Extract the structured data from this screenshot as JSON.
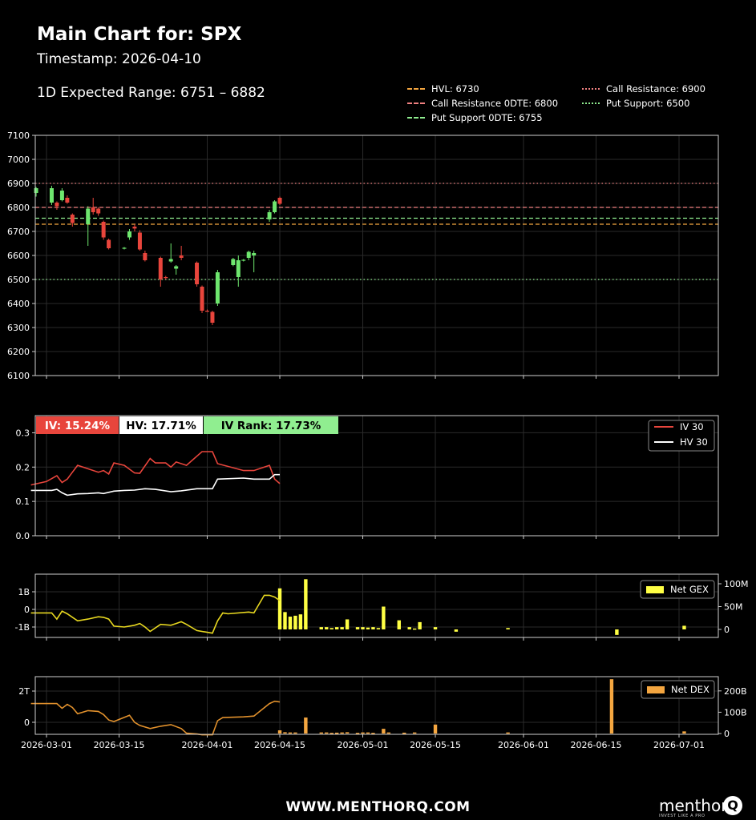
{
  "header": {
    "title": "Main Chart for: SPX",
    "timestamp": "Timestamp: 2026-04-10",
    "expected_range": "1D Expected Range: 6751 – 6882"
  },
  "footer": {
    "url": "WWW.MENTHORQ.COM",
    "brand_name": "menthor",
    "brand_mark": "Q",
    "brand_tagline": "INVEST LIKE A PRO"
  },
  "level_legend": [
    {
      "label": "HVL: 6730",
      "color": "#f4a640",
      "style": "dashed"
    },
    {
      "label": "Call Resistance 0DTE: 6800",
      "color": "#f08080",
      "style": "dashed"
    },
    {
      "label": "Put Support 0DTE: 6755",
      "color": "#90ee90",
      "style": "dashed"
    },
    {
      "label": "Call Resistance: 6900",
      "color": "#f08080",
      "style": "dotted"
    },
    {
      "label": "Put Support: 6500",
      "color": "#90ee90",
      "style": "dotted"
    }
  ],
  "x_axis": {
    "ticks": [
      "2026-03-01",
      "2026-03-15",
      "2026-04-01",
      "2026-04-15",
      "2026-05-01",
      "2026-05-15",
      "2026-06-01",
      "2026-06-15",
      "2026-07-01"
    ]
  },
  "chart_data": [
    {
      "type": "candlestick",
      "ylim": [
        6100,
        7100
      ],
      "yticks": [
        "6100",
        "6200",
        "6300",
        "6400",
        "6500",
        "6600",
        "6700",
        "6800",
        "6900",
        "7000",
        "7100"
      ],
      "colors": {
        "up": "#6ee66e",
        "down": "#e8453c"
      },
      "levels": [
        {
          "name": "HVL",
          "value": 6730,
          "color": "#f4a640",
          "style": "dashed"
        },
        {
          "name": "Call Resistance 0DTE",
          "value": 6800,
          "color": "#f08080",
          "style": "dashed"
        },
        {
          "name": "Put Support 0DTE",
          "value": 6755,
          "color": "#90ee90",
          "style": "dashed"
        },
        {
          "name": "Call Resistance",
          "value": 6900,
          "color": "#f08080",
          "style": "dotted"
        },
        {
          "name": "Put Support",
          "value": 6500,
          "color": "#90ee90",
          "style": "dotted"
        }
      ],
      "candles": [
        {
          "date": "2026-02-27",
          "open": 6860,
          "high": 6885,
          "low": 6845,
          "close": 6880
        },
        {
          "date": "2026-03-02",
          "open": 6820,
          "high": 6890,
          "low": 6810,
          "close": 6880
        },
        {
          "date": "2026-03-03",
          "open": 6820,
          "high": 6825,
          "low": 6790,
          "close": 6805
        },
        {
          "date": "2026-03-04",
          "open": 6830,
          "high": 6880,
          "low": 6825,
          "close": 6870
        },
        {
          "date": "2026-03-05",
          "open": 6840,
          "high": 6850,
          "low": 6815,
          "close": 6820
        },
        {
          "date": "2026-03-06",
          "open": 6770,
          "high": 6775,
          "low": 6720,
          "close": 6735
        },
        {
          "date": "2026-03-09",
          "open": 6730,
          "high": 6805,
          "low": 6640,
          "close": 6795
        },
        {
          "date": "2026-03-10",
          "open": 6800,
          "high": 6840,
          "low": 6770,
          "close": 6780
        },
        {
          "date": "2026-03-11",
          "open": 6795,
          "high": 6800,
          "low": 6765,
          "close": 6775
        },
        {
          "date": "2026-03-12",
          "open": 6740,
          "high": 6745,
          "low": 6665,
          "close": 6675
        },
        {
          "date": "2026-03-13",
          "open": 6665,
          "high": 6670,
          "low": 6625,
          "close": 6630
        },
        {
          "date": "2026-03-16",
          "open": 6630,
          "high": 6635,
          "low": 6625,
          "close": 6632
        },
        {
          "date": "2026-03-17",
          "open": 6675,
          "high": 6710,
          "low": 6665,
          "close": 6700
        },
        {
          "date": "2026-03-18",
          "open": 6720,
          "high": 6730,
          "low": 6700,
          "close": 6712
        },
        {
          "date": "2026-03-19",
          "open": 6695,
          "high": 6705,
          "low": 6620,
          "close": 6625
        },
        {
          "date": "2026-03-20",
          "open": 6610,
          "high": 6620,
          "low": 6575,
          "close": 6580
        },
        {
          "date": "2026-03-23",
          "open": 6590,
          "high": 6595,
          "low": 6470,
          "close": 6500
        },
        {
          "date": "2026-03-24",
          "open": 6510,
          "high": 6515,
          "low": 6500,
          "close": 6508
        },
        {
          "date": "2026-03-25",
          "open": 6575,
          "high": 6650,
          "low": 6570,
          "close": 6585
        },
        {
          "date": "2026-03-26",
          "open": 6545,
          "high": 6560,
          "low": 6520,
          "close": 6555
        },
        {
          "date": "2026-03-27",
          "open": 6600,
          "high": 6640,
          "low": 6580,
          "close": 6590
        },
        {
          "date": "2026-03-30",
          "open": 6570,
          "high": 6575,
          "low": 6470,
          "close": 6480
        },
        {
          "date": "2026-03-31",
          "open": 6470,
          "high": 6475,
          "low": 6360,
          "close": 6370
        },
        {
          "date": "2026-04-01",
          "open": 6370,
          "high": 6375,
          "low": 6365,
          "close": 6368
        },
        {
          "date": "2026-04-02",
          "open": 6365,
          "high": 6370,
          "low": 6310,
          "close": 6320
        },
        {
          "date": "2026-04-03",
          "open": 6400,
          "high": 6540,
          "low": 6390,
          "close": 6530
        },
        {
          "date": "2026-04-06",
          "open": 6560,
          "high": 6590,
          "low": 6555,
          "close": 6585
        },
        {
          "date": "2026-04-07",
          "open": 6510,
          "high": 6600,
          "low": 6470,
          "close": 6580
        },
        {
          "date": "2026-04-08",
          "open": 6580,
          "high": 6585,
          "low": 6575,
          "close": 6582
        },
        {
          "date": "2026-04-09",
          "open": 6590,
          "high": 6620,
          "low": 6580,
          "close": 6615
        },
        {
          "date": "2026-04-10",
          "open": 6600,
          "high": 6620,
          "low": 6530,
          "close": 6610
        },
        {
          "date": "2026-04-13",
          "open": 6750,
          "high": 6790,
          "low": 6740,
          "close": 6780
        },
        {
          "date": "2026-04-14",
          "open": 6780,
          "high": 6830,
          "low": 6775,
          "close": 6825
        },
        {
          "date": "2026-04-15",
          "open": 6840,
          "high": 6845,
          "low": 6810,
          "close": 6815
        }
      ]
    },
    {
      "type": "line",
      "ylim": [
        0.0,
        0.35
      ],
      "yticks": [
        "0.0",
        "0.1",
        "0.2",
        "0.3"
      ],
      "badges": [
        {
          "text": "IV: 15.24%",
          "bg": "#e8453c",
          "fg": "#ffffff"
        },
        {
          "text": "HV: 17.71%",
          "bg": "#ffffff",
          "fg": "#000000"
        },
        {
          "text": "IV Rank: 17.73%",
          "bg": "#90ee90",
          "fg": "#000000"
        }
      ],
      "legend": [
        {
          "label": "IV 30",
          "color": "#e8453c"
        },
        {
          "label": "HV 30",
          "color": "#ffffff"
        }
      ],
      "series": [
        {
          "name": "IV 30",
          "color": "#e8453c",
          "x": [
            "2026-02-26",
            "2026-03-01",
            "2026-03-03",
            "2026-03-04",
            "2026-03-05",
            "2026-03-06",
            "2026-03-07",
            "2026-03-09",
            "2026-03-11",
            "2026-03-12",
            "2026-03-13",
            "2026-03-14",
            "2026-03-16",
            "2026-03-18",
            "2026-03-19",
            "2026-03-21",
            "2026-03-22",
            "2026-03-24",
            "2026-03-25",
            "2026-03-26",
            "2026-03-28",
            "2026-03-31",
            "2026-04-01",
            "2026-04-02",
            "2026-04-03",
            "2026-04-08",
            "2026-04-09",
            "2026-04-10",
            "2026-04-13",
            "2026-04-14",
            "2026-04-15"
          ],
          "y": [
            0.148,
            0.158,
            0.175,
            0.155,
            0.165,
            0.185,
            0.205,
            0.195,
            0.185,
            0.19,
            0.18,
            0.212,
            0.205,
            0.183,
            0.182,
            0.225,
            0.212,
            0.212,
            0.2,
            0.215,
            0.205,
            0.245,
            0.245,
            0.245,
            0.21,
            0.19,
            0.19,
            0.19,
            0.205,
            0.165,
            0.152
          ]
        },
        {
          "name": "HV 30",
          "color": "#ffffff",
          "x": [
            "2026-02-26",
            "2026-03-02",
            "2026-03-03",
            "2026-03-04",
            "2026-03-05",
            "2026-03-07",
            "2026-03-09",
            "2026-03-11",
            "2026-03-12",
            "2026-03-14",
            "2026-03-16",
            "2026-03-18",
            "2026-03-20",
            "2026-03-22",
            "2026-03-25",
            "2026-03-27",
            "2026-03-30",
            "2026-04-01",
            "2026-04-02",
            "2026-04-03",
            "2026-04-08",
            "2026-04-10",
            "2026-04-13",
            "2026-04-14",
            "2026-04-15"
          ],
          "y": [
            0.132,
            0.132,
            0.135,
            0.125,
            0.118,
            0.122,
            0.123,
            0.125,
            0.123,
            0.13,
            0.132,
            0.133,
            0.137,
            0.135,
            0.128,
            0.131,
            0.137,
            0.137,
            0.137,
            0.165,
            0.168,
            0.165,
            0.165,
            0.178,
            0.178
          ]
        }
      ]
    },
    {
      "type": "line+bar",
      "ylim_left": [
        -1.5,
        2.0
      ],
      "yticks_left": [
        "1B",
        "0",
        "-1B"
      ],
      "yticks_right": [
        "100M",
        "50M",
        "0"
      ],
      "legend": [
        {
          "label": "Net GEX",
          "color": "#ffff44"
        }
      ],
      "line": {
        "name": "Net GEX",
        "color": "#e8d820",
        "x": [
          "2026-02-26",
          "2026-03-02",
          "2026-03-03",
          "2026-03-04",
          "2026-03-05",
          "2026-03-07",
          "2026-03-09",
          "2026-03-11",
          "2026-03-12",
          "2026-03-13",
          "2026-03-14",
          "2026-03-16",
          "2026-03-18",
          "2026-03-19",
          "2026-03-20",
          "2026-03-21",
          "2026-03-23",
          "2026-03-25",
          "2026-03-26",
          "2026-03-27",
          "2026-03-28",
          "2026-03-30",
          "2026-04-01",
          "2026-04-02",
          "2026-04-03",
          "2026-04-04",
          "2026-04-05",
          "2026-04-09",
          "2026-04-10",
          "2026-04-12",
          "2026-04-13",
          "2026-04-14",
          "2026-04-15"
        ],
        "y": [
          -0.2,
          -0.2,
          -0.55,
          -0.1,
          -0.25,
          -0.65,
          -0.55,
          -0.42,
          -0.45,
          -0.55,
          -0.95,
          -1.0,
          -0.9,
          -0.8,
          -1.0,
          -1.25,
          -0.85,
          -0.9,
          -0.8,
          -0.7,
          -0.85,
          -1.2,
          -1.3,
          -1.35,
          -0.65,
          -0.2,
          -0.25,
          -0.15,
          -0.2,
          0.8,
          0.8,
          0.7,
          0.5
        ]
      },
      "bars": {
        "name": "Net GEX bars",
        "color": "#ffff44",
        "unit": "M",
        "x": [
          "2026-04-15",
          "2026-04-16",
          "2026-04-17",
          "2026-04-18",
          "2026-04-19",
          "2026-04-20",
          "2026-04-23",
          "2026-04-24",
          "2026-04-25",
          "2026-04-26",
          "2026-04-27",
          "2026-04-28",
          "2026-04-30",
          "2026-05-01",
          "2026-05-02",
          "2026-05-03",
          "2026-05-04",
          "2026-05-05",
          "2026-05-08",
          "2026-05-10",
          "2026-05-11",
          "2026-05-12",
          "2026-05-15",
          "2026-05-19",
          "2026-05-29",
          "2026-06-19",
          "2026-07-02"
        ],
        "y": [
          90,
          38,
          28,
          30,
          33,
          110,
          5,
          5,
          3,
          5,
          5,
          22,
          5,
          5,
          4,
          5,
          3,
          50,
          20,
          5,
          2,
          16,
          5,
          -5,
          3,
          -12,
          8
        ]
      }
    },
    {
      "type": "line+bar",
      "yticks_left": [
        "2T",
        "0"
      ],
      "yticks_right": [
        "200B",
        "100B",
        "0"
      ],
      "legend": [
        {
          "label": "Net DEX",
          "color": "#f4a640"
        }
      ],
      "line": {
        "name": "Net DEX",
        "color": "#e0902c",
        "x": [
          "2026-02-26",
          "2026-03-01",
          "2026-03-03",
          "2026-03-04",
          "2026-03-05",
          "2026-03-06",
          "2026-03-07",
          "2026-03-09",
          "2026-03-11",
          "2026-03-12",
          "2026-03-13",
          "2026-03-14",
          "2026-03-17",
          "2026-03-18",
          "2026-03-19",
          "2026-03-21",
          "2026-03-23",
          "2026-03-25",
          "2026-03-27",
          "2026-03-28",
          "2026-03-30",
          "2026-03-31",
          "2026-04-02",
          "2026-04-03",
          "2026-04-04",
          "2026-04-08",
          "2026-04-10",
          "2026-04-13",
          "2026-04-14",
          "2026-04-15"
        ],
        "y": [
          1.2,
          1.2,
          1.2,
          0.9,
          1.15,
          0.95,
          0.55,
          0.75,
          0.7,
          0.5,
          0.15,
          0.05,
          0.45,
          0.0,
          -0.2,
          -0.4,
          -0.25,
          -0.15,
          -0.4,
          -0.7,
          -0.75,
          -0.8,
          -0.8,
          0.1,
          0.3,
          0.35,
          0.4,
          1.2,
          1.35,
          1.3
        ]
      },
      "bars": {
        "name": "Net DEX bars",
        "color": "#f4a640",
        "unit": "B",
        "x": [
          "2026-04-15",
          "2026-04-16",
          "2026-04-17",
          "2026-04-18",
          "2026-04-20",
          "2026-04-23",
          "2026-04-24",
          "2026-04-25",
          "2026-04-26",
          "2026-04-27",
          "2026-04-28",
          "2026-04-30",
          "2026-05-01",
          "2026-05-02",
          "2026-05-03",
          "2026-05-05",
          "2026-05-06",
          "2026-05-09",
          "2026-05-11",
          "2026-05-15",
          "2026-05-29",
          "2026-06-18",
          "2026-07-02"
        ],
        "y": [
          15,
          6,
          5,
          5,
          75,
          5,
          5,
          3,
          4,
          5,
          6,
          3,
          5,
          5,
          3,
          22,
          5,
          4,
          5,
          42,
          5,
          255,
          10
        ]
      }
    }
  ]
}
